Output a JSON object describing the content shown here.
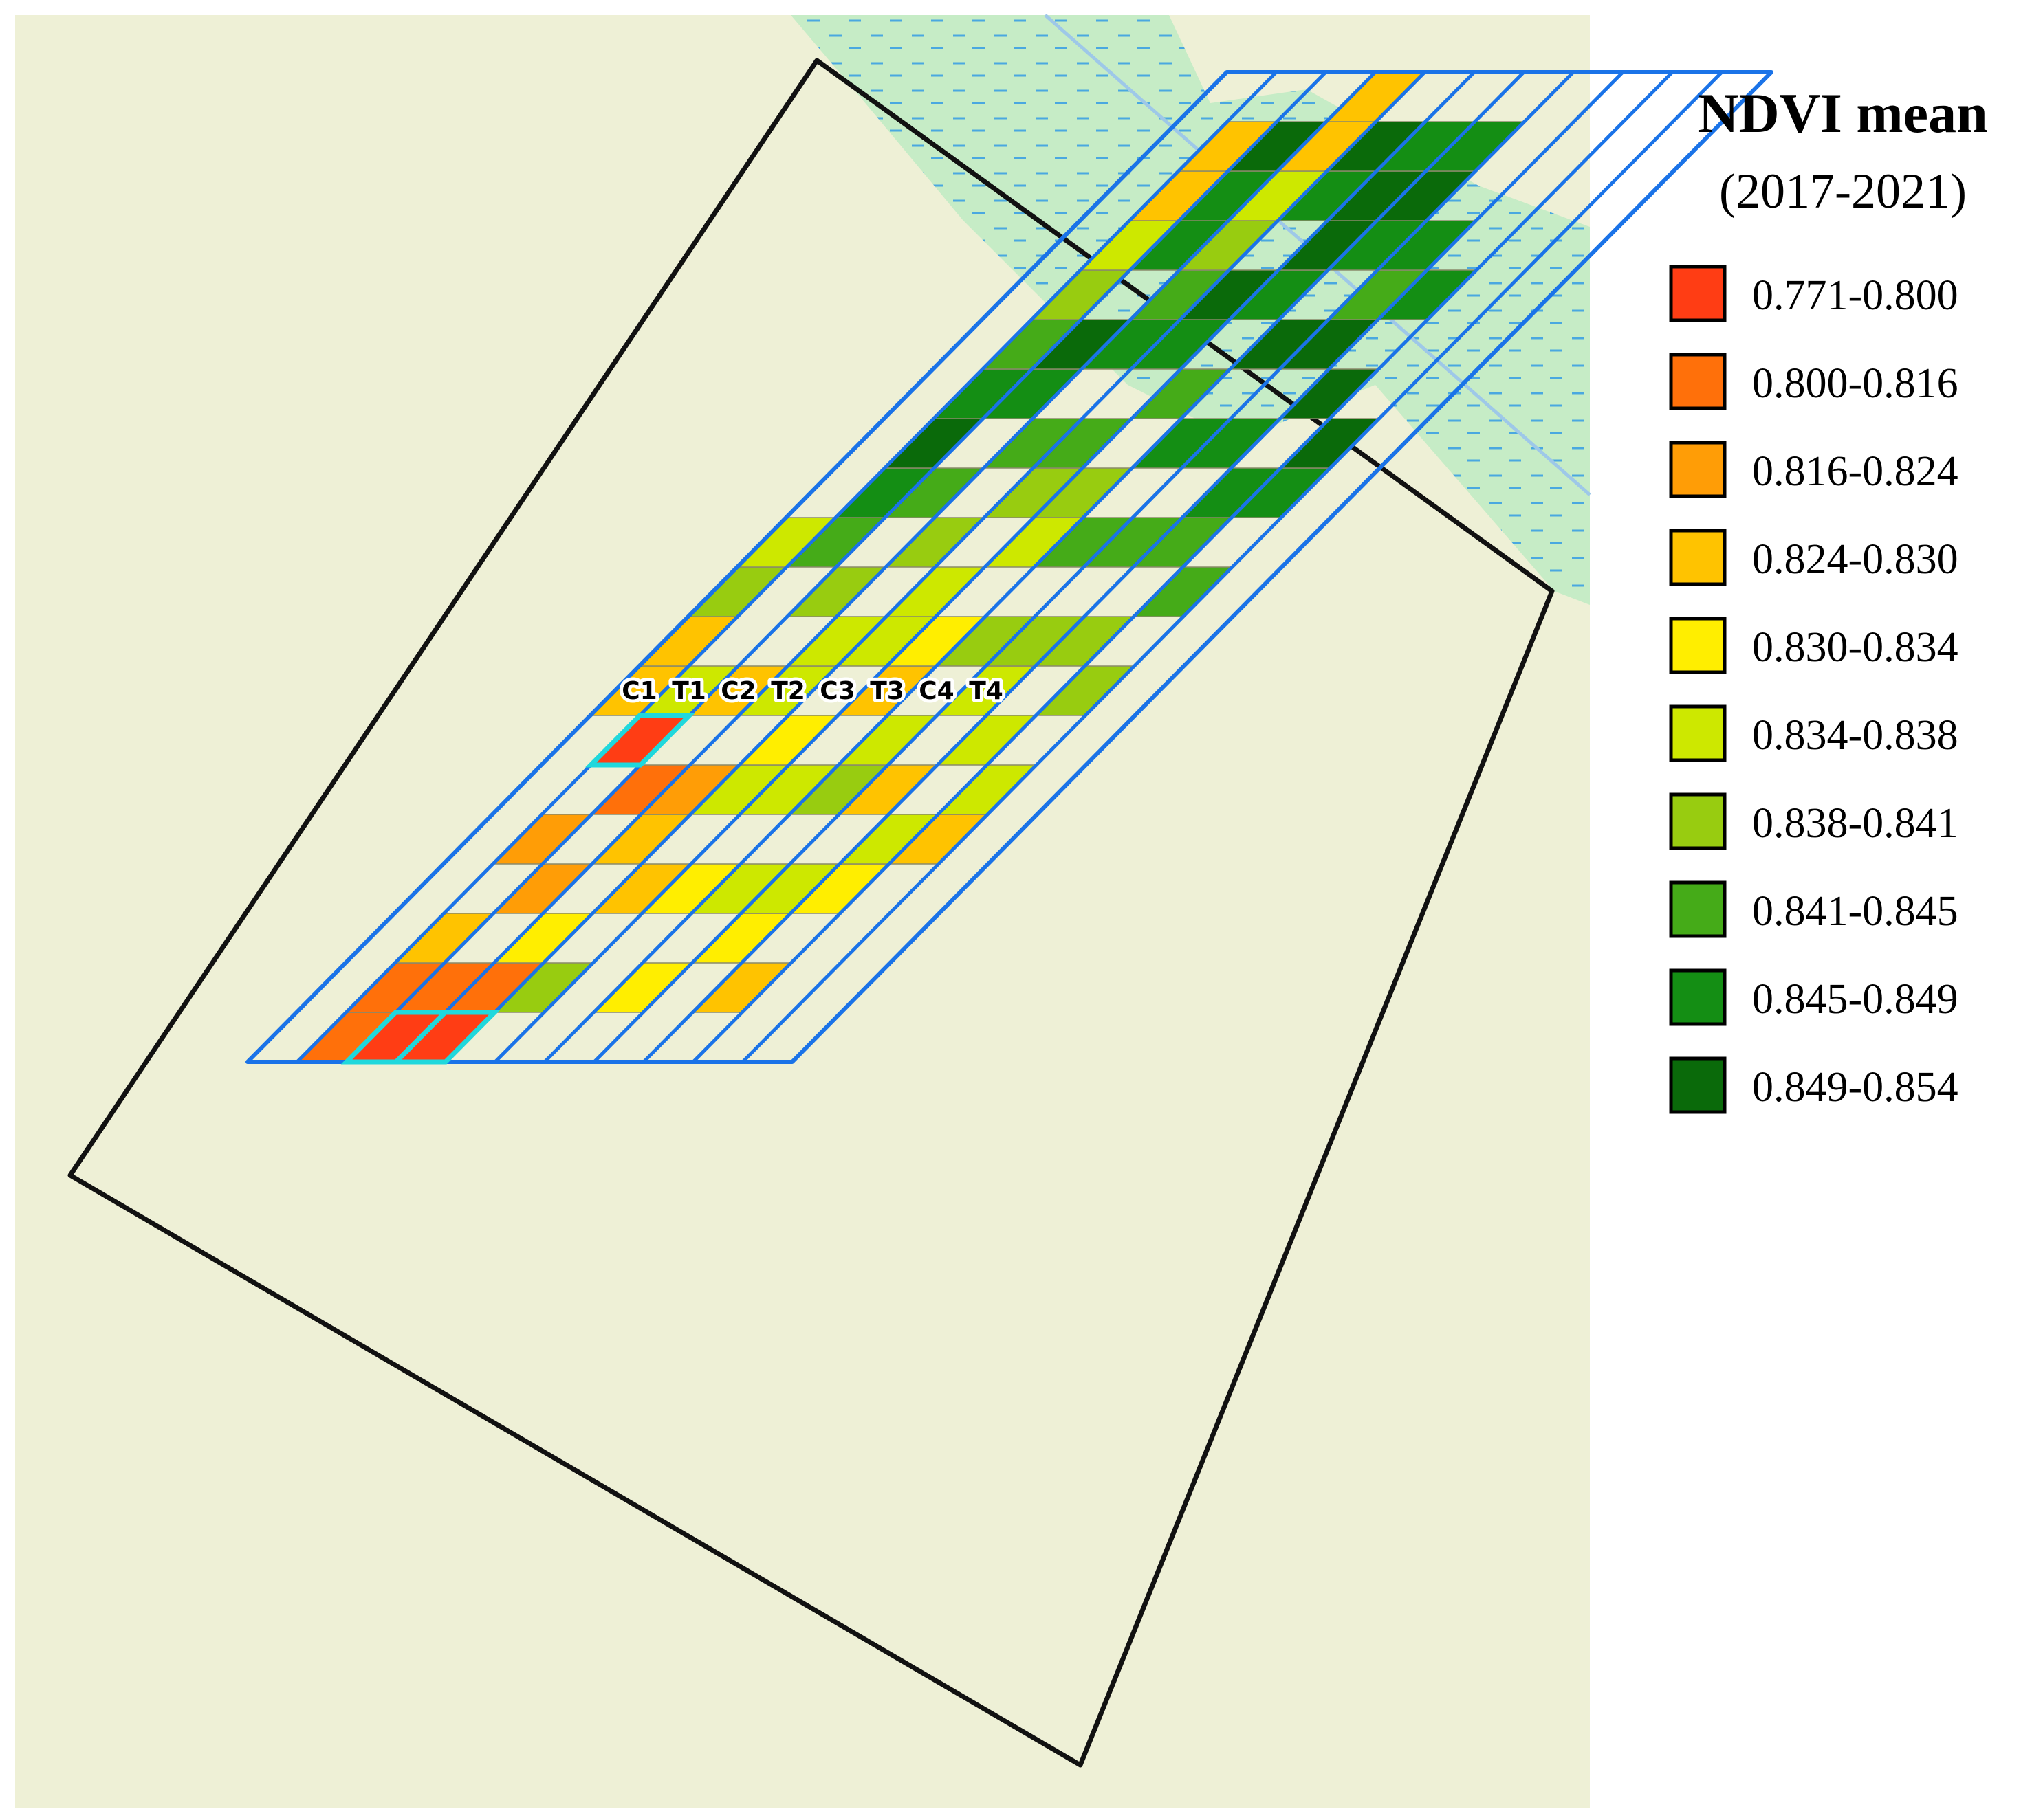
{
  "legend": {
    "title": "NDVI mean",
    "subtitle": "(2017-2021)",
    "classes": [
      {
        "label": "0.771-0.800",
        "color": "#ff3d14"
      },
      {
        "label": "0.800-0.816",
        "color": "#ff700a"
      },
      {
        "label": "0.816-0.824",
        "color": "#ff9d06"
      },
      {
        "label": "0.824-0.830",
        "color": "#ffc300"
      },
      {
        "label": "0.830-0.834",
        "color": "#ffee00"
      },
      {
        "label": "0.834-0.838",
        "color": "#cde800"
      },
      {
        "label": "0.838-0.841",
        "color": "#98cc10"
      },
      {
        "label": "0.841-0.845",
        "color": "#45ab18"
      },
      {
        "label": "0.845-0.849",
        "color": "#148e14"
      },
      {
        "label": "0.849-0.854",
        "color": "#0a6a0a"
      }
    ]
  },
  "plots": [
    {
      "label": "C1",
      "stripe": 0
    },
    {
      "label": "T1",
      "stripe": 1
    },
    {
      "label": "C2",
      "stripe": 2
    },
    {
      "label": "T2",
      "stripe": 3
    },
    {
      "label": "C3",
      "stripe": 4
    },
    {
      "label": "T3",
      "stripe": 5
    },
    {
      "label": "C4",
      "stripe": 6
    },
    {
      "label": "T4",
      "stripe": 7
    }
  ],
  "grid": {
    "stripes": [
      [
        -1,
        -1,
        -1,
        -1,
        -1,
        -1,
        -1,
        3,
        3,
        6,
        5,
        -1,
        -1,
        -1,
        -1,
        -1,
        -1,
        -1,
        -1,
        -1
      ],
      [
        1,
        1,
        3,
        -1,
        2,
        -1,
        0,
        5,
        -1,
        -1,
        7,
        8,
        9,
        8,
        7,
        6,
        5,
        3,
        3,
        -1
      ],
      [
        0,
        1,
        -1,
        2,
        -1,
        1,
        -1,
        3,
        -1,
        6,
        -1,
        7,
        -1,
        8,
        9,
        -1,
        8,
        8,
        9,
        -1
      ],
      [
        0,
        1,
        4,
        -1,
        3,
        2,
        -1,
        5,
        5,
        -1,
        6,
        -1,
        7,
        -1,
        8,
        7,
        6,
        5,
        3,
        3
      ],
      [
        -1,
        6,
        -1,
        3,
        -1,
        5,
        4,
        -1,
        5,
        5,
        -1,
        6,
        7,
        -1,
        8,
        9,
        -1,
        8,
        9,
        -1
      ],
      [
        -1,
        -1,
        -1,
        4,
        -1,
        5,
        -1,
        3,
        4,
        -1,
        5,
        6,
        -1,
        7,
        -1,
        8,
        9,
        9,
        8,
        -1
      ],
      [
        -1,
        4,
        -1,
        5,
        -1,
        6,
        5,
        -1,
        6,
        -1,
        7,
        -1,
        8,
        -1,
        9,
        -1,
        8,
        9,
        8,
        -1
      ],
      [
        -1,
        -1,
        4,
        5,
        -1,
        3,
        -1,
        5,
        6,
        -1,
        7,
        -1,
        8,
        -1,
        9,
        7,
        8,
        -1,
        -1,
        -1
      ],
      [
        -1,
        3,
        -1,
        4,
        5,
        -1,
        5,
        -1,
        6,
        -1,
        7,
        8,
        -1,
        9,
        -1,
        8,
        -1,
        -1,
        -1,
        -1
      ],
      [
        -1,
        -1,
        -1,
        -1,
        3,
        5,
        -1,
        6,
        -1,
        7,
        -1,
        8,
        9,
        -1,
        -1,
        -1,
        -1,
        -1,
        -1,
        -1
      ],
      [
        -1,
        -1,
        -1,
        -1,
        -1,
        -1,
        -1,
        -1,
        -1,
        -1,
        -1,
        -1,
        -1,
        -1,
        -1,
        -1,
        -1,
        -1,
        -1,
        -1
      ]
    ]
  }
}
